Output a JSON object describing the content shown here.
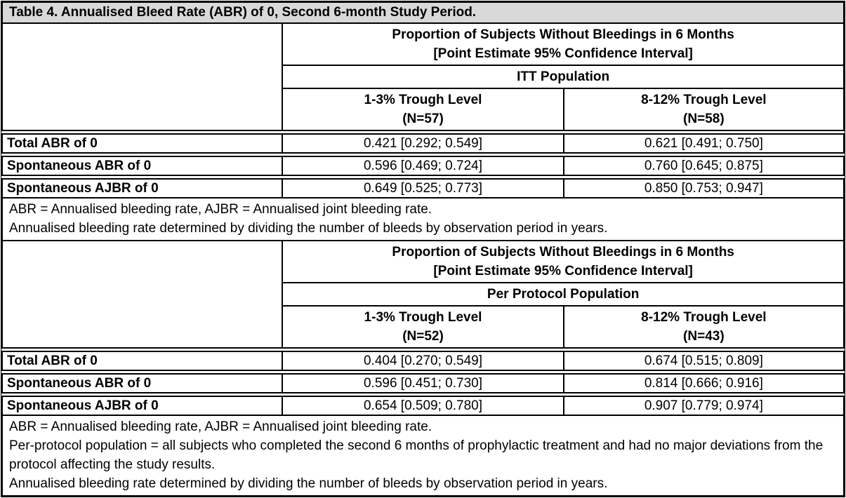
{
  "title": "Table 4. Annualised Bleed Rate (ABR) of 0, Second 6-month Study Period.",
  "colors": {
    "title_background": "#d9d9d9",
    "border": "#000000",
    "text": "#000000",
    "page_background": "#ffffff"
  },
  "sections": [
    {
      "header_line1": "Proportion of Subjects Without Bleedings in 6 Months",
      "header_line2": "[Point Estimate 95% Confidence Interval]",
      "population": "ITT Population",
      "columns": [
        {
          "line1": "1-3% Trough Level",
          "line2": "(N=57)"
        },
        {
          "line1": "8-12% Trough Level",
          "line2": "(N=58)"
        }
      ],
      "rows": [
        {
          "label": "Total ABR of 0",
          "col1": "0.421 [0.292; 0.549]",
          "col2": "0.621 [0.491; 0.750]"
        },
        {
          "label": "Spontaneous ABR of 0",
          "col1": "0.596 [0.469; 0.724]",
          "col2": "0.760 [0.645; 0.875]"
        },
        {
          "label": "Spontaneous AJBR of 0",
          "col1": "0.649 [0.525; 0.773]",
          "col2": "0.850 [0.753; 0.947]"
        }
      ],
      "footnotes": [
        "ABR = Annualised bleeding rate, AJBR = Annualised joint bleeding rate.",
        "Annualised bleeding rate determined by dividing the number of bleeds by observation period in years."
      ]
    },
    {
      "header_line1": "Proportion of Subjects Without Bleedings in 6 Months",
      "header_line2": "[Point Estimate 95% Confidence Interval]",
      "population": "Per Protocol Population",
      "columns": [
        {
          "line1": "1-3% Trough Level",
          "line2": "(N=52)"
        },
        {
          "line1": "8-12% Trough Level",
          "line2": "(N=43)"
        }
      ],
      "rows": [
        {
          "label": "Total ABR of 0",
          "col1": "0.404 [0.270; 0.549]",
          "col2": "0.674 [0.515; 0.809]"
        },
        {
          "label": "Spontaneous ABR of 0",
          "col1": "0.596 [0.451; 0.730]",
          "col2": "0.814 [0.666; 0.916]"
        },
        {
          "label": "Spontaneous AJBR of 0",
          "col1": "0.654 [0.509; 0.780]",
          "col2": "0.907 [0.779; 0.974]"
        }
      ],
      "footnotes": [
        "ABR = Annualised bleeding rate, AJBR = Annualised joint bleeding rate.",
        "Per-protocol population = all subjects who completed the second 6 months of prophylactic treatment and had no major deviations from the protocol affecting the study results.",
        "Annualised bleeding rate determined by dividing the number of bleeds by observation period in years."
      ]
    }
  ]
}
